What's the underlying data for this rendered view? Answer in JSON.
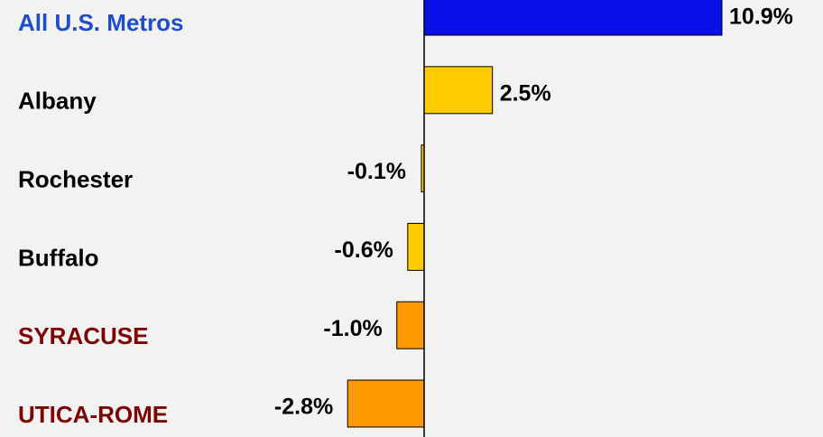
{
  "chart_data": {
    "type": "bar",
    "orientation": "horizontal",
    "categories": [
      "All U.S. Metros",
      "Albany",
      "Rochester",
      "Buffalo",
      "SYRACUSE",
      "UTICA-ROME"
    ],
    "values": [
      10.9,
      2.5,
      -0.1,
      -0.6,
      -1.0,
      -2.8
    ],
    "value_labels": [
      "10.9%",
      "2.5%",
      "-0.1%",
      "-0.6%",
      "-1.0%",
      "-2.8%"
    ],
    "colors": [
      "#0a10e8",
      "#ffcc00",
      "#ffcc00",
      "#ffcc00",
      "#ff9900",
      "#ff9900"
    ],
    "label_colors": [
      "#1f4fc8",
      "#000000",
      "#000000",
      "#000000",
      "#7f0000",
      "#7f0000"
    ]
  }
}
